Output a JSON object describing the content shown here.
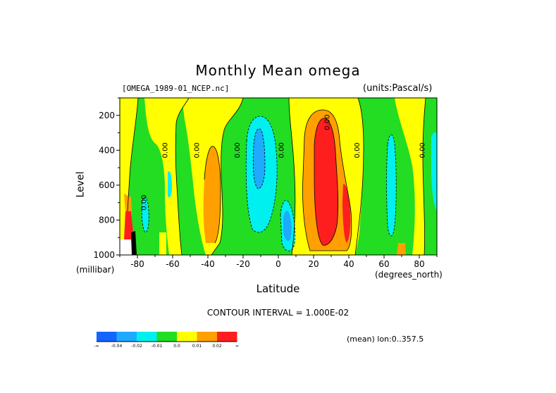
{
  "chart_data": {
    "type": "heatmap",
    "title": "Monthly Mean omega",
    "subtitle_left": "[OMEGA_1989-01_NCEP.nc]",
    "subtitle_right": "(units:Pascal/s)",
    "xlabel": "Latitude",
    "x_units": "(degrees_north)",
    "ylabel": "Level",
    "y_units": "(millibar)",
    "xlim": [
      -90,
      90
    ],
    "ylim": [
      1000,
      100
    ],
    "y_inverted": true,
    "x_ticks": [
      -80,
      -60,
      -40,
      -20,
      0,
      20,
      40,
      60,
      80
    ],
    "y_ticks": [
      200,
      400,
      600,
      800,
      1000
    ],
    "contour_interval_text": "CONTOUR INTERVAL = 1.000E-02",
    "mean_text": "(mean) lon:0..357.5",
    "contour_labels": [
      {
        "lat": -75,
        "level": 700,
        "text": "0.00"
      },
      {
        "lat": -63,
        "level": 400,
        "text": "0.00"
      },
      {
        "lat": -45,
        "level": 400,
        "text": "0.00"
      },
      {
        "lat": -22,
        "level": 400,
        "text": "0.00"
      },
      {
        "lat": 3,
        "level": 400,
        "text": "0.00"
      },
      {
        "lat": 29,
        "level": 240,
        "text": "0.00"
      },
      {
        "lat": 46,
        "level": 400,
        "text": "0.00"
      },
      {
        "lat": 83,
        "level": 400,
        "text": "0.00"
      }
    ],
    "legend": {
      "colors": [
        "#1464ff",
        "#1eaaff",
        "#00f0f0",
        "#22dd22",
        "#ffff00",
        "#ffa000",
        "#ff1e1e"
      ],
      "labels": [
        "-∞",
        "-0.04",
        "-0.02",
        "-0.01",
        "0.0",
        "0.01",
        "0.02",
        "∞"
      ]
    },
    "regions": [
      {
        "lat": [
          -72,
          -68
        ],
        "level": [
          540,
          1000
        ],
        "value": 0.01
      },
      {
        "lat": [
          -68,
          -64
        ],
        "level": [
          600,
          1000
        ],
        "value": 0.0
      },
      {
        "lat": [
          -59,
          -57
        ],
        "level": [
          750,
          1000
        ],
        "value": -0.015
      },
      {
        "lat": [
          -43,
          -31
        ],
        "level": [
          330,
          1000
        ],
        "value": 0.015
      },
      {
        "lat": [
          -26,
          -5
        ],
        "level": [
          150,
          1000
        ],
        "value": -0.015
      },
      {
        "lat": [
          -14,
          -8
        ],
        "level": [
          260,
          550
        ],
        "value": -0.03
      },
      {
        "lat": [
          10,
          48
        ],
        "level": [
          100,
          1000
        ],
        "value": 0.005
      },
      {
        "lat": [
          12,
          48
        ],
        "level": [
          170,
          1000
        ],
        "value": 0.015
      },
      {
        "lat": [
          21,
          35
        ],
        "level": [
          220,
          1000
        ],
        "value": 0.025
      },
      {
        "lat": [
          38,
          43
        ],
        "level": [
          620,
          900
        ],
        "value": 0.025
      },
      {
        "lat": [
          52,
          56
        ],
        "level": [
          330,
          1000
        ],
        "value": -0.015
      },
      {
        "lat": [
          64,
          71
        ],
        "level": [
          380,
          1000
        ],
        "value": 0.005
      },
      {
        "lat": [
          85,
          90
        ],
        "level": [
          280,
          700
        ],
        "value": -0.015
      },
      {
        "lat": [
          -90,
          -82
        ],
        "level": [
          800,
          1000
        ],
        "value": 0.03
      }
    ]
  }
}
